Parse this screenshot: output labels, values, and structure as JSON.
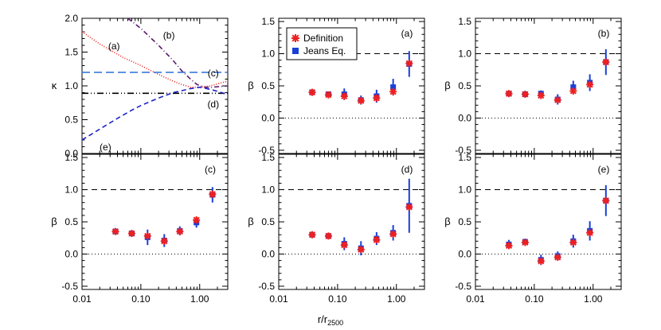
{
  "chart_data": [
    {
      "type": "line",
      "panel": "kappa",
      "ylabel": "κ",
      "ylim": [
        0,
        2
      ],
      "xlim": [
        0.01,
        3
      ],
      "xscale": "log",
      "yticks": [
        "0.0",
        "0.5",
        "1.0",
        "1.5",
        "2.0"
      ],
      "series": [
        {
          "label": "(a)",
          "color": "#e8201a",
          "dash": "1,2",
          "x": [
            0.01,
            0.02,
            0.05,
            0.1,
            0.2,
            0.35,
            0.5,
            0.7,
            1.0,
            1.5,
            2.0,
            3.0
          ],
          "y": [
            1.8,
            1.62,
            1.42,
            1.3,
            1.17,
            1.07,
            1.02,
            0.98,
            0.98,
            1.0,
            1.03,
            1.07
          ]
        },
        {
          "label": "(b)",
          "color": "#5a1a6e",
          "dash": "6,3,1,3",
          "x": [
            0.06,
            0.1,
            0.2,
            0.35,
            0.5,
            0.7,
            0.9,
            1.2,
            1.6,
            2.2,
            3.0
          ],
          "y": [
            2.0,
            1.85,
            1.6,
            1.38,
            1.22,
            1.1,
            1.02,
            0.98,
            0.98,
            0.99,
            1.0
          ]
        },
        {
          "label": "(c)",
          "color": "#2a6fd8",
          "dash": "10,5",
          "x": [
            0.01,
            3.0
          ],
          "y": [
            1.2,
            1.2
          ]
        },
        {
          "label": "(d)",
          "color": "#000000",
          "dash": "8,3,1,3,1,3",
          "x": [
            0.01,
            3.0
          ],
          "y": [
            0.89,
            0.89
          ]
        },
        {
          "label": "(e)",
          "color": "#1a22c8",
          "dash": "6,4",
          "x": [
            0.01,
            0.02,
            0.04,
            0.07,
            0.1,
            0.2,
            0.35,
            0.5,
            0.7,
            1.0,
            1.5,
            2.0,
            3.0
          ],
          "y": [
            0.2,
            0.36,
            0.52,
            0.64,
            0.71,
            0.82,
            0.9,
            0.93,
            0.96,
            0.98,
            0.95,
            0.92,
            0.87
          ]
        }
      ],
      "labels": [
        "(a)",
        "(b)",
        "(c)",
        "(d)",
        "(e)"
      ]
    },
    {
      "type": "scatter",
      "panel": "(a)",
      "ylabel": "β",
      "ylim": [
        -0.55,
        1.55
      ],
      "xlim": [
        0.01,
        3
      ],
      "xscale": "log",
      "legend": {
        "placement": "top-left",
        "entries": [
          "Definition",
          "Jeans Eq."
        ]
      },
      "x": [
        0.037,
        0.07,
        0.13,
        0.25,
        0.46,
        0.88,
        1.65
      ],
      "definition": [
        0.4,
        0.36,
        0.34,
        0.27,
        0.31,
        0.41,
        0.85
      ],
      "jeans": [
        0.4,
        0.37,
        0.37,
        0.28,
        0.34,
        0.48,
        0.84
      ],
      "jeans_err": [
        0.04,
        0.04,
        0.09,
        0.07,
        0.1,
        0.13,
        0.2
      ]
    },
    {
      "type": "scatter",
      "panel": "(b)",
      "ylabel": "β",
      "ylim": [
        -0.55,
        1.55
      ],
      "xlim": [
        0.01,
        3
      ],
      "xscale": "log",
      "x": [
        0.037,
        0.07,
        0.13,
        0.25,
        0.46,
        0.88,
        1.65
      ],
      "definition": [
        0.38,
        0.37,
        0.35,
        0.28,
        0.42,
        0.52,
        0.87
      ],
      "jeans": [
        0.38,
        0.37,
        0.38,
        0.29,
        0.48,
        0.55,
        0.87
      ],
      "jeans_err": [
        0.04,
        0.04,
        0.05,
        0.08,
        0.1,
        0.13,
        0.2
      ]
    },
    {
      "type": "scatter",
      "panel": "(c)",
      "ylabel": "β",
      "ylim": [
        -0.55,
        1.55
      ],
      "xlim": [
        0.01,
        3
      ],
      "xscale": "log",
      "x": [
        0.037,
        0.07,
        0.13,
        0.25,
        0.46,
        0.88,
        1.65
      ],
      "definition": [
        0.35,
        0.32,
        0.28,
        0.2,
        0.35,
        0.53,
        0.93
      ],
      "jeans": [
        0.35,
        0.32,
        0.26,
        0.21,
        0.36,
        0.49,
        0.92
      ],
      "jeans_err": [
        0.04,
        0.04,
        0.12,
        0.1,
        0.07,
        0.08,
        0.12
      ]
    },
    {
      "type": "scatter",
      "panel": "(d)",
      "ylabel": "β",
      "ylim": [
        -0.55,
        1.55
      ],
      "xlim": [
        0.01,
        3
      ],
      "xscale": "log",
      "x": [
        0.037,
        0.07,
        0.13,
        0.25,
        0.46,
        0.88,
        1.65
      ],
      "definition": [
        0.3,
        0.28,
        0.14,
        0.07,
        0.22,
        0.31,
        0.73
      ],
      "jeans": [
        0.3,
        0.28,
        0.16,
        0.09,
        0.24,
        0.33,
        0.75
      ],
      "jeans_err": [
        0.04,
        0.04,
        0.1,
        0.11,
        0.1,
        0.12,
        0.42
      ]
    },
    {
      "type": "scatter",
      "panel": "(e)",
      "ylabel": "β",
      "ylim": [
        -0.55,
        1.55
      ],
      "xlim": [
        0.01,
        3
      ],
      "xscale": "log",
      "x": [
        0.037,
        0.07,
        0.13,
        0.25,
        0.46,
        0.88,
        1.65
      ],
      "definition": [
        0.13,
        0.18,
        -0.11,
        -0.05,
        0.18,
        0.33,
        0.83
      ],
      "jeans": [
        0.15,
        0.19,
        -0.09,
        -0.03,
        0.2,
        0.36,
        0.83
      ],
      "jeans_err": [
        0.07,
        0.05,
        0.08,
        0.07,
        0.1,
        0.15,
        0.24
      ]
    }
  ],
  "axes": {
    "xlabel_base": "r/r",
    "xlabel_sub": "2500",
    "xticks": [
      "0.01",
      "0.10",
      "1.00"
    ],
    "beta_yticks": [
      "-0.5",
      "0.0",
      "0.5",
      "1.0",
      "1.5"
    ]
  },
  "colors": {
    "definition": "#ee2020",
    "jeans": "#1a3fd8",
    "frame": "#000000"
  }
}
